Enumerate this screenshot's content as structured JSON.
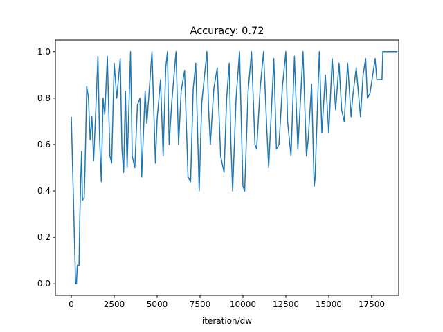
{
  "chart_data": {
    "type": "line",
    "title": "Accuracy: 0.72",
    "x_label": "iteration/dw",
    "xlim": [
      -927,
      19073
    ],
    "ylim": [
      -0.05,
      1.05
    ],
    "xticks": [
      0,
      2500,
      5000,
      7500,
      10000,
      12500,
      15000,
      17500
    ],
    "yticks": [
      {
        "value": 0,
        "label": "0.0"
      },
      {
        "value": 0.2,
        "label": "0.2"
      },
      {
        "value": 0.4,
        "label": "0.4"
      },
      {
        "value": 0.6,
        "label": "0.6"
      },
      {
        "value": 0.8,
        "label": "0.8"
      },
      {
        "value": 1,
        "label": "1.0"
      }
    ],
    "color": "#1f77b4",
    "x": [
      0,
      250,
      300,
      350,
      450,
      500,
      550,
      600,
      650,
      750,
      800,
      900,
      1000,
      1100,
      1200,
      1300,
      1400,
      1550,
      1650,
      1750,
      1850,
      1950,
      2100,
      2250,
      2350,
      2500,
      2650,
      2850,
      2950,
      3050,
      3150,
      3250,
      3450,
      3550,
      3700,
      3850,
      4000,
      4100,
      4300,
      4400,
      4700,
      4900,
      5000,
      5200,
      5350,
      5500,
      5600,
      5700,
      5850,
      6100,
      6250,
      6400,
      6600,
      6800,
      6950,
      7100,
      7250,
      7450,
      7600,
      7900,
      8000,
      8100,
      8300,
      8500,
      8700,
      8900,
      9050,
      9200,
      9300,
      9400,
      9600,
      9800,
      10000,
      10100,
      10300,
      10500,
      10700,
      10800,
      11000,
      11200,
      11400,
      11500,
      11800,
      11950,
      12100,
      12300,
      12500,
      12600,
      12800,
      13000,
      13200,
      13300,
      13500,
      13700,
      13800,
      14000,
      14150,
      14200,
      14450,
      14600,
      14800,
      15000,
      15200,
      15400,
      15600,
      15750,
      15900,
      16100,
      16300,
      16400,
      16600,
      16850,
      17000,
      17150,
      17250,
      17400,
      17700,
      17800,
      18100,
      18150,
      19000
    ],
    "values": [
      0.72,
      0.0,
      0.0,
      0.08,
      0.08,
      0.3,
      0.45,
      0.57,
      0.36,
      0.37,
      0.5,
      0.85,
      0.8,
      0.62,
      0.72,
      0.53,
      0.7,
      0.98,
      0.62,
      0.44,
      0.8,
      0.73,
      0.98,
      0.55,
      0.52,
      0.95,
      0.8,
      0.97,
      0.58,
      0.48,
      0.83,
      0.5,
      1.0,
      0.55,
      0.5,
      0.77,
      0.8,
      0.46,
      0.83,
      0.69,
      1.0,
      0.52,
      0.71,
      0.88,
      0.55,
      0.93,
      1.0,
      0.6,
      0.78,
      1.0,
      0.6,
      0.83,
      0.92,
      0.46,
      0.44,
      0.84,
      0.95,
      0.4,
      0.78,
      1.0,
      0.75,
      0.6,
      0.84,
      0.93,
      0.55,
      0.48,
      0.8,
      0.95,
      0.6,
      0.4,
      0.8,
      1.0,
      0.42,
      0.4,
      0.83,
      1.0,
      0.6,
      0.58,
      0.84,
      1.0,
      0.65,
      0.5,
      0.97,
      0.58,
      0.6,
      0.85,
      1.0,
      0.7,
      0.55,
      0.98,
      0.58,
      0.72,
      1.0,
      0.55,
      0.62,
      0.86,
      0.42,
      0.45,
      1.0,
      0.65,
      0.9,
      0.65,
      0.97,
      0.75,
      0.95,
      0.75,
      0.7,
      0.95,
      0.72,
      0.81,
      0.93,
      0.72,
      0.9,
      0.97,
      0.8,
      0.82,
      0.97,
      0.88,
      0.88,
      1.0,
      1.0
    ]
  }
}
